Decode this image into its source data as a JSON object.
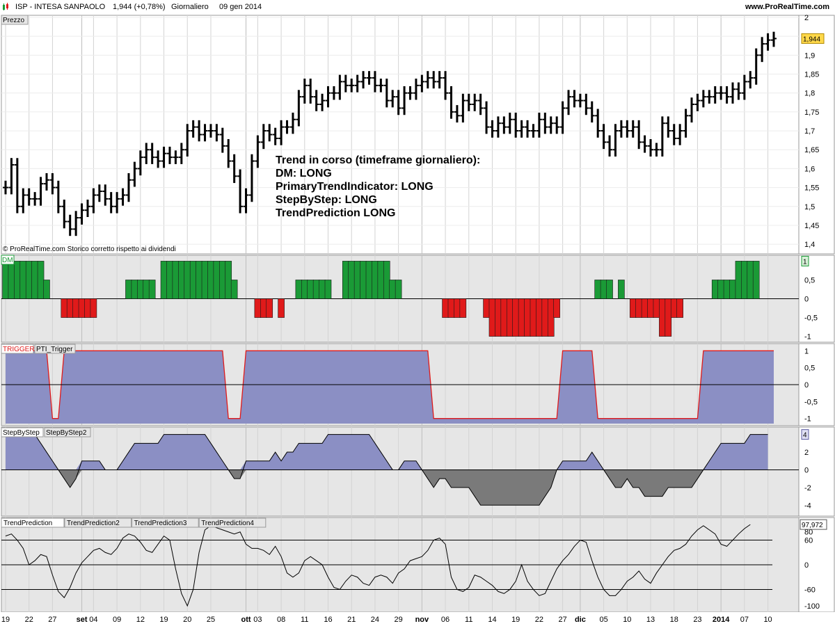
{
  "header": {
    "symbol": "ISP - INTESA SANPAOLO",
    "last": "1,944 (+0,78%)",
    "period": "Giornaliero",
    "date": "09 gen 2014",
    "website": "www.ProRealTime.com"
  },
  "colors": {
    "up": "#1a9a36",
    "down": "#e01a1a",
    "fill": "#8b8fc4",
    "neg_fill": "#7a7a7a",
    "panel_bg": "#e6e6e6",
    "trigger_line": "#e01a1a"
  },
  "chart_data": [
    {
      "type": "ohlc",
      "panel": "price",
      "title": "Prezzo",
      "copyright": "© ProRealTime.com  Storico corretto rispetto ai dividendi",
      "annotation": [
        "Trend in corso (timeframe giornaliero):",
        "DM: LONG",
        "PrimaryTrendIndicator: LONG",
        "StepByStep: LONG",
        "TrendPrediction LONG"
      ],
      "last_label": "1,944",
      "ylim": [
        1.38,
        2.0
      ],
      "yticks": [
        "2",
        "1,95",
        "1,9",
        "1,85",
        "1,8",
        "1,75",
        "1,7",
        "1,65",
        "1,6",
        "1,55",
        "1,5",
        "1,45",
        "1,4"
      ],
      "closes": [
        1.55,
        1.61,
        1.5,
        1.53,
        1.52,
        1.52,
        1.56,
        1.57,
        1.55,
        1.5,
        1.46,
        1.44,
        1.47,
        1.49,
        1.5,
        1.53,
        1.54,
        1.52,
        1.5,
        1.52,
        1.53,
        1.57,
        1.6,
        1.63,
        1.65,
        1.63,
        1.62,
        1.64,
        1.63,
        1.63,
        1.65,
        1.7,
        1.71,
        1.69,
        1.7,
        1.7,
        1.69,
        1.66,
        1.62,
        1.58,
        1.5,
        1.53,
        1.62,
        1.67,
        1.7,
        1.69,
        1.68,
        1.71,
        1.71,
        1.73,
        1.79,
        1.82,
        1.79,
        1.77,
        1.78,
        1.8,
        1.8,
        1.83,
        1.82,
        1.82,
        1.83,
        1.84,
        1.84,
        1.82,
        1.82,
        1.78,
        1.79,
        1.76,
        1.8,
        1.8,
        1.82,
        1.83,
        1.84,
        1.83,
        1.84,
        1.8,
        1.75,
        1.74,
        1.78,
        1.77,
        1.78,
        1.76,
        1.71,
        1.7,
        1.72,
        1.71,
        1.73,
        1.7,
        1.71,
        1.7,
        1.7,
        1.73,
        1.71,
        1.72,
        1.71,
        1.76,
        1.79,
        1.78,
        1.78,
        1.76,
        1.74,
        1.7,
        1.67,
        1.65,
        1.7,
        1.71,
        1.7,
        1.71,
        1.67,
        1.66,
        1.65,
        1.65,
        1.72,
        1.7,
        1.68,
        1.7,
        1.74,
        1.77,
        1.78,
        1.79,
        1.79,
        1.8,
        1.8,
        1.79,
        1.81,
        1.8,
        1.83,
        1.84,
        1.9,
        1.93,
        1.94,
        1.944
      ]
    },
    {
      "type": "bar",
      "panel": "DM",
      "title": "DM",
      "ylim": [
        -1.1,
        1.1
      ],
      "yticks": [
        "1",
        "0,5",
        "0",
        "-0,5",
        "-1"
      ],
      "last_label": "1",
      "values": [
        1,
        1,
        1,
        1,
        1,
        1,
        1,
        0.5,
        0,
        0,
        -0.5,
        -0.5,
        -0.5,
        -0.5,
        -0.5,
        -0.5,
        0,
        0,
        0,
        0,
        0,
        0.5,
        0.5,
        0.5,
        0.5,
        0.5,
        0,
        1,
        1,
        1,
        1,
        1,
        1,
        1,
        1,
        1,
        1,
        1,
        1,
        0.5,
        0,
        0,
        0,
        -0.5,
        -0.5,
        -0.5,
        0,
        -0.5,
        0,
        0,
        0.5,
        0.5,
        0.5,
        0.5,
        0.5,
        0.5,
        0,
        0,
        1,
        1,
        1,
        1,
        1,
        1,
        1,
        1,
        0.5,
        0.5,
        0,
        0,
        0,
        0,
        0,
        0,
        0,
        -0.5,
        -0.5,
        -0.5,
        -0.5,
        0,
        0,
        0,
        -0.5,
        -1,
        -1,
        -1,
        -1,
        -1,
        -1,
        -1,
        -1,
        -1,
        -1,
        -1,
        -0.5,
        0,
        0,
        0,
        0,
        0,
        0,
        0.5,
        0.5,
        0.5,
        0,
        0.5,
        0,
        -0.5,
        -0.5,
        -0.5,
        -0.5,
        -0.5,
        -1,
        -1,
        -0.5,
        -0.5,
        0,
        0,
        0,
        0,
        0,
        0.5,
        0.5,
        0.5,
        0.5,
        1,
        1,
        1,
        1
      ]
    },
    {
      "type": "area",
      "panel": "trigger",
      "title": "TRIGGER",
      "subtitle": "PTI_Trigger",
      "ylim": [
        -1.15,
        1.15
      ],
      "yticks": [
        "1",
        "0,5",
        "0",
        "-0,5",
        "-1"
      ],
      "hlines": [
        0
      ],
      "values": [
        1,
        1,
        1,
        1,
        1,
        1,
        1,
        1,
        -1,
        -1,
        1,
        1,
        1,
        1,
        1,
        1,
        1,
        1,
        1,
        1,
        1,
        1,
        1,
        1,
        1,
        1,
        1,
        1,
        1,
        1,
        1,
        1,
        1,
        1,
        1,
        1,
        1,
        1,
        -1,
        -1,
        -1,
        1,
        1,
        1,
        1,
        1,
        1,
        1,
        1,
        1,
        1,
        1,
        1,
        1,
        1,
        1,
        1,
        1,
        1,
        1,
        1,
        1,
        1,
        1,
        1,
        1,
        1,
        1,
        1,
        1,
        1,
        1,
        1,
        -1,
        -1,
        -1,
        -1,
        -1,
        -1,
        -1,
        -1,
        -1,
        -1,
        -1,
        -1,
        -1,
        -1,
        -1,
        -1,
        -1,
        -1,
        -1,
        -1,
        -1,
        -1,
        1,
        1,
        1,
        1,
        1,
        1,
        -1,
        -1,
        -1,
        -1,
        -1,
        -1,
        -1,
        -1,
        -1,
        -1,
        -1,
        -1,
        -1,
        -1,
        -1,
        -1,
        -1,
        -1,
        1,
        1,
        1,
        1,
        1,
        1,
        1,
        1,
        1,
        1,
        1,
        1,
        1
      ]
    },
    {
      "type": "area",
      "panel": "stepbystep",
      "title": "StepByStep",
      "subtitle": "StepByStep2",
      "ylim": [
        -5,
        4.6
      ],
      "yticks": [
        "4",
        "2",
        "0",
        "-2",
        "-4"
      ],
      "last_label": "4",
      "values": [
        4,
        4,
        4,
        4,
        4,
        4,
        3,
        2,
        1,
        0,
        -1,
        -2,
        -1,
        1,
        1,
        1,
        1,
        0,
        0,
        0,
        1,
        2,
        3,
        3,
        3,
        3,
        3,
        4,
        4,
        4,
        4,
        4,
        4,
        4,
        4,
        3,
        2,
        1,
        0,
        -1,
        -1,
        1,
        1,
        1,
        1,
        1,
        2,
        1,
        2,
        2,
        3,
        3,
        3,
        3,
        3,
        4,
        4,
        4,
        4,
        4,
        4,
        4,
        4,
        3,
        2,
        1,
        0,
        0,
        1,
        1,
        1,
        0,
        -1,
        -2,
        -1,
        -1,
        -2,
        -2,
        -2,
        -2,
        -3,
        -4,
        -4,
        -4,
        -4,
        -4,
        -4,
        -4,
        -4,
        -4,
        -4,
        -4,
        -3,
        -2,
        0,
        1,
        1,
        1,
        1,
        1,
        2,
        1,
        0,
        -1,
        -2,
        -2,
        -1,
        -2,
        -2,
        -3,
        -3,
        -3,
        -3,
        -2,
        -2,
        -2,
        -2,
        -2,
        -1,
        0,
        1,
        2,
        3,
        3,
        3,
        3,
        3,
        4,
        4,
        4,
        4
      ]
    },
    {
      "type": "line",
      "panel": "trendprediction",
      "title": "TrendPrediction",
      "series_names": [
        "TrendPrediction2",
        "TrendPrediction3",
        "TrendPrediction4"
      ],
      "ylim": [
        -110,
        110
      ],
      "yticks": [
        "80",
        "60",
        "0",
        "-60",
        "-100"
      ],
      "hlines": [
        60,
        0,
        -60
      ],
      "last_label": "97,972",
      "values": [
        70,
        75,
        60,
        40,
        0,
        10,
        25,
        20,
        -25,
        -65,
        -80,
        -55,
        -20,
        5,
        20,
        35,
        40,
        30,
        25,
        40,
        65,
        75,
        70,
        55,
        35,
        30,
        50,
        70,
        60,
        -10,
        -70,
        -100,
        -60,
        30,
        85,
        95,
        90,
        85,
        80,
        75,
        80,
        50,
        40,
        40,
        35,
        25,
        45,
        20,
        -20,
        -30,
        -20,
        10,
        20,
        10,
        0,
        -30,
        -55,
        -60,
        -40,
        -25,
        -30,
        -45,
        -50,
        -30,
        -25,
        -30,
        -45,
        -20,
        -10,
        10,
        15,
        20,
        35,
        60,
        65,
        50,
        -30,
        -60,
        -65,
        -55,
        -25,
        -30,
        -40,
        -50,
        -65,
        -70,
        -60,
        -40,
        0,
        -40,
        -60,
        -75,
        -70,
        -40,
        -10,
        10,
        25,
        45,
        60,
        55,
        10,
        -30,
        -60,
        -75,
        -75,
        -60,
        -40,
        -30,
        -15,
        -35,
        -45,
        -20,
        0,
        20,
        35,
        40,
        50,
        70,
        85,
        95,
        85,
        75,
        50,
        45,
        60,
        75,
        88,
        97.972
      ]
    }
  ],
  "x_axis": {
    "labels": [
      {
        "i": 0,
        "t": "19",
        "b": false
      },
      {
        "i": 4,
        "t": "22",
        "b": false
      },
      {
        "i": 8,
        "t": "27",
        "b": false
      },
      {
        "i": 13,
        "t": "set",
        "b": true
      },
      {
        "i": 15,
        "t": "04",
        "b": false
      },
      {
        "i": 19,
        "t": "09",
        "b": false
      },
      {
        "i": 23,
        "t": "12",
        "b": false
      },
      {
        "i": 27,
        "t": "19",
        "b": false
      },
      {
        "i": 31,
        "t": "20",
        "b": false
      },
      {
        "i": 35,
        "t": "25",
        "b": false
      },
      {
        "i": 41,
        "t": "ott",
        "b": true
      },
      {
        "i": 43,
        "t": "03",
        "b": false
      },
      {
        "i": 47,
        "t": "08",
        "b": false
      },
      {
        "i": 51,
        "t": "11",
        "b": false
      },
      {
        "i": 55,
        "t": "16",
        "b": false
      },
      {
        "i": 59,
        "t": "21",
        "b": false
      },
      {
        "i": 63,
        "t": "24",
        "b": false
      },
      {
        "i": 67,
        "t": "29",
        "b": false
      },
      {
        "i": 71,
        "t": "nov",
        "b": true
      },
      {
        "i": 75,
        "t": "06",
        "b": false
      },
      {
        "i": 79,
        "t": "11",
        "b": false
      },
      {
        "i": 83,
        "t": "14",
        "b": false
      },
      {
        "i": 87,
        "t": "19",
        "b": false
      },
      {
        "i": 91,
        "t": "22",
        "b": false
      },
      {
        "i": 95,
        "t": "27",
        "b": false
      },
      {
        "i": 98,
        "t": "dic",
        "b": true
      },
      {
        "i": 102,
        "t": "05",
        "b": false
      },
      {
        "i": 106,
        "t": "10",
        "b": false
      },
      {
        "i": 110,
        "t": "13",
        "b": false
      },
      {
        "i": 114,
        "t": "18",
        "b": false
      },
      {
        "i": 118,
        "t": "23",
        "b": false
      },
      {
        "i": 122,
        "t": "2014",
        "b": true
      },
      {
        "i": 126,
        "t": "07",
        "b": false
      },
      {
        "i": 130,
        "t": "10",
        "b": false
      }
    ]
  }
}
